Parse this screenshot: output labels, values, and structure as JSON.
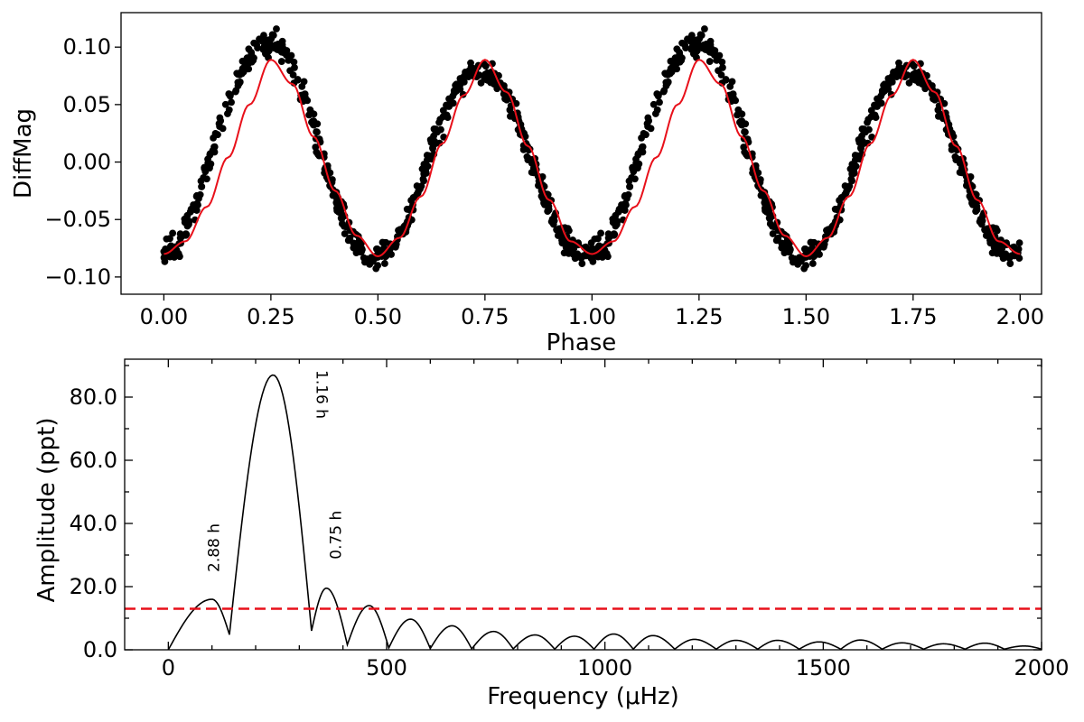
{
  "chart_data": [
    {
      "type": "scatter",
      "xlabel": "Phase",
      "ylabel": "DiffMag",
      "xlim": [
        -0.1,
        2.05
      ],
      "ylim": [
        -0.115,
        0.13
      ],
      "x_ticks": [
        "0.00",
        "0.25",
        "0.50",
        "0.75",
        "1.00",
        "1.25",
        "1.50",
        "1.75",
        "2.00"
      ],
      "y_ticks": [
        "−0.10",
        "−0.05",
        "0.00",
        "0.05",
        "0.10"
      ],
      "series": [
        {
          "kind": "points",
          "color": "#000000",
          "description_points": "phase-folded photometry repeated over two cycles",
          "x": [
            0.0,
            0.02,
            0.04,
            0.06,
            0.08,
            0.1,
            0.12,
            0.14,
            0.16,
            0.18,
            0.2,
            0.22,
            0.24,
            0.26,
            0.28,
            0.3,
            0.32,
            0.34,
            0.36,
            0.38,
            0.4,
            0.42,
            0.44,
            0.46,
            0.48,
            0.5,
            0.52,
            0.54,
            0.56,
            0.58,
            0.6,
            0.62,
            0.64,
            0.66,
            0.68,
            0.7,
            0.72,
            0.74,
            0.76,
            0.78,
            0.8,
            0.82,
            0.84,
            0.86,
            0.88,
            0.9,
            0.92,
            0.94,
            0.96,
            0.98,
            1.0
          ],
          "y": [
            -0.078,
            -0.075,
            -0.066,
            -0.05,
            -0.03,
            -0.007,
            0.016,
            0.039,
            0.06,
            0.077,
            0.091,
            0.1,
            0.104,
            0.104,
            0.098,
            0.085,
            0.066,
            0.043,
            0.018,
            -0.007,
            -0.03,
            -0.05,
            -0.065,
            -0.075,
            -0.08,
            -0.082,
            -0.079,
            -0.071,
            -0.058,
            -0.04,
            -0.019,
            0.003,
            0.024,
            0.043,
            0.059,
            0.07,
            0.077,
            0.079,
            0.078,
            0.071,
            0.058,
            0.042,
            0.022,
            0.0,
            -0.021,
            -0.041,
            -0.057,
            -0.069,
            -0.077,
            -0.08,
            -0.078
          ]
        },
        {
          "kind": "line",
          "color": "#e8101a",
          "x": [
            0.0,
            0.05,
            0.1,
            0.15,
            0.2,
            0.25,
            0.3,
            0.35,
            0.4,
            0.45,
            0.5,
            0.55,
            0.6,
            0.65,
            0.7,
            0.75,
            0.8,
            0.85,
            0.9,
            0.95,
            1.0
          ],
          "y": [
            -0.08,
            -0.069,
            -0.039,
            0.004,
            0.05,
            0.089,
            0.068,
            0.022,
            -0.025,
            -0.064,
            -0.082,
            -0.066,
            -0.03,
            0.016,
            0.058,
            0.089,
            0.061,
            0.014,
            -0.033,
            -0.069,
            -0.08
          ]
        }
      ]
    },
    {
      "type": "line",
      "xlabel": "Frequency (μHz)",
      "ylabel": "Amplitude (ppt)",
      "xlim": [
        -100,
        2000
      ],
      "ylim": [
        0,
        92
      ],
      "x_ticks": [
        "0",
        "500",
        "1000",
        "1500",
        "2000"
      ],
      "y_ticks": [
        "0.0",
        "20.0",
        "40.0",
        "60.0",
        "80.0"
      ],
      "threshold": 13.0,
      "threshold_color": "#e8101a",
      "annotations": [
        {
          "text": "2.88 h",
          "x": 100,
          "y": 16
        },
        {
          "text": "1.16 h",
          "x": 240,
          "y": 87
        },
        {
          "text": "0.75 h",
          "x": 362,
          "y": 19.5
        }
      ],
      "series": [
        {
          "color": "#000000",
          "peaks": [
            {
              "x": 100,
              "y": 16
            },
            {
              "x": 240,
              "y": 87
            },
            {
              "x": 362,
              "y": 19.5
            },
            {
              "x": 460,
              "y": 14
            },
            {
              "x": 555,
              "y": 9.7
            },
            {
              "x": 650,
              "y": 7.6
            },
            {
              "x": 745,
              "y": 5.8
            },
            {
              "x": 840,
              "y": 4.7
            },
            {
              "x": 930,
              "y": 4.3
            },
            {
              "x": 1020,
              "y": 5.0
            },
            {
              "x": 1110,
              "y": 4.5
            },
            {
              "x": 1205,
              "y": 3.3
            },
            {
              "x": 1300,
              "y": 3.0
            },
            {
              "x": 1395,
              "y": 3.0
            },
            {
              "x": 1490,
              "y": 2.5
            },
            {
              "x": 1585,
              "y": 3.1
            },
            {
              "x": 1680,
              "y": 2.2
            },
            {
              "x": 1775,
              "y": 1.9
            },
            {
              "x": 1870,
              "y": 2.1
            },
            {
              "x": 1960,
              "y": 1.2
            }
          ],
          "minima_x": [
            0,
            140,
            328,
            410,
            505,
            600,
            695,
            790,
            885,
            975,
            1065,
            1160,
            1255,
            1350,
            1445,
            1540,
            1635,
            1730,
            1825,
            1915,
            2000
          ]
        }
      ]
    }
  ]
}
